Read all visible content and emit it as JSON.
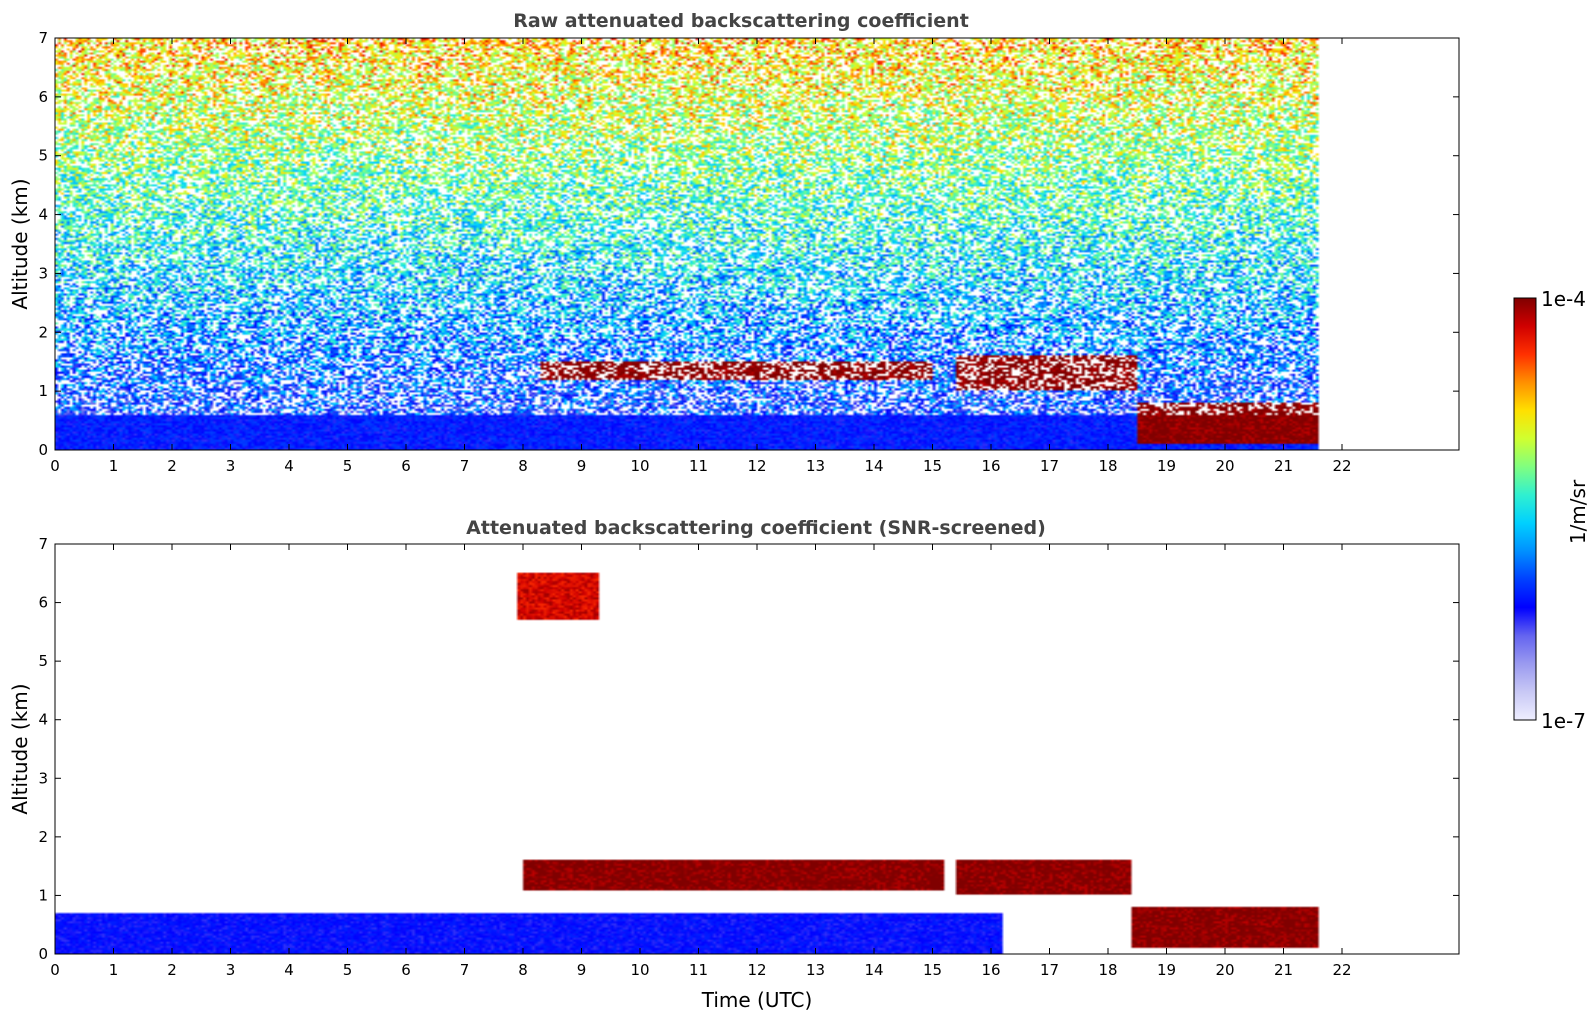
{
  "figure": {
    "colorbar": {
      "label": "1/m/sr",
      "max_label": "1e-4",
      "min_label": "1e-7",
      "scale": "log",
      "vmin": 1e-07,
      "vmax": 0.0001,
      "colormap": [
        "#eeeeff",
        "#c8c8f5",
        "#9a9af0",
        "#6464f0",
        "#0000ff",
        "#0040ff",
        "#0090ff",
        "#00d0ff",
        "#30f0d0",
        "#80ff80",
        "#d0ff30",
        "#ffe000",
        "#ff9000",
        "#ff3000",
        "#d00000",
        "#800000"
      ]
    }
  },
  "chart_data": [
    {
      "type": "heatmap",
      "title": "Raw attenuated backscattering coefficient",
      "xlabel": "",
      "ylabel": "Altitude (km)",
      "xlim": [
        0,
        24
      ],
      "ylim": [
        0,
        7
      ],
      "xticks": [
        "0",
        "1",
        "2",
        "3",
        "4",
        "5",
        "6",
        "7",
        "8",
        "9",
        "10",
        "11",
        "12",
        "13",
        "14",
        "15",
        "16",
        "17",
        "18",
        "19",
        "20",
        "21",
        "22"
      ],
      "yticks": [
        "0",
        "1",
        "2",
        "3",
        "4",
        "5",
        "6",
        "7"
      ],
      "data_time_range_utc": [
        0,
        21.6
      ],
      "z_units": "1/m/sr",
      "features": [
        {
          "time_range": [
            0,
            21.6
          ],
          "altitude_range": [
            0,
            0.6
          ],
          "description": "aerosol boundary layer",
          "value": 5e-07
        },
        {
          "time_range": [
            8.3,
            15.0
          ],
          "altitude_range": [
            1.2,
            1.5
          ],
          "description": "broken cloud layer",
          "value": 0.0001
        },
        {
          "time_range": [
            15.4,
            18.5
          ],
          "altitude_range": [
            1.0,
            1.6
          ],
          "description": "cloud layer",
          "value": 0.0001
        },
        {
          "time_range": [
            18.5,
            21.6
          ],
          "altitude_range": [
            0.1,
            0.8
          ],
          "description": "descending cloud base",
          "value": 0.0001
        },
        {
          "time_range": [
            0,
            21.6
          ],
          "altitude_range": [
            1,
            7
          ],
          "description": "noisy background",
          "value": 3e-06
        }
      ]
    },
    {
      "type": "heatmap",
      "title": "Attenuated backscattering coefficient (SNR-screened)",
      "xlabel": "Time (UTC)",
      "ylabel": "Altitude (km)",
      "xlim": [
        0,
        24
      ],
      "ylim": [
        0,
        7
      ],
      "xticks": [
        "0",
        "1",
        "2",
        "3",
        "4",
        "5",
        "6",
        "7",
        "8",
        "9",
        "10",
        "11",
        "12",
        "13",
        "14",
        "15",
        "16",
        "17",
        "18",
        "19",
        "20",
        "21",
        "22"
      ],
      "yticks": [
        "0",
        "1",
        "2",
        "3",
        "4",
        "5",
        "6",
        "7"
      ],
      "data_time_range_utc": [
        0,
        21.6
      ],
      "z_units": "1/m/sr",
      "features": [
        {
          "time_range": [
            0,
            16.2
          ],
          "altitude_range": [
            0,
            0.7
          ],
          "description": "aerosol boundary layer",
          "value": 5e-07
        },
        {
          "time_range": [
            8.0,
            15.2
          ],
          "altitude_range": [
            1.1,
            1.6
          ],
          "description": "broken cloud layer",
          "value": 0.0001
        },
        {
          "time_range": [
            15.4,
            18.4
          ],
          "altitude_range": [
            1.0,
            1.6
          ],
          "description": "cloud layer",
          "value": 0.0001
        },
        {
          "time_range": [
            18.4,
            21.6
          ],
          "altitude_range": [
            0.1,
            0.8
          ],
          "description": "descending cloud base",
          "value": 0.0001
        },
        {
          "time_range": [
            7.9,
            9.3
          ],
          "altitude_range": [
            5.7,
            6.5
          ],
          "description": "isolated high returns",
          "value": 6e-05
        }
      ]
    }
  ]
}
